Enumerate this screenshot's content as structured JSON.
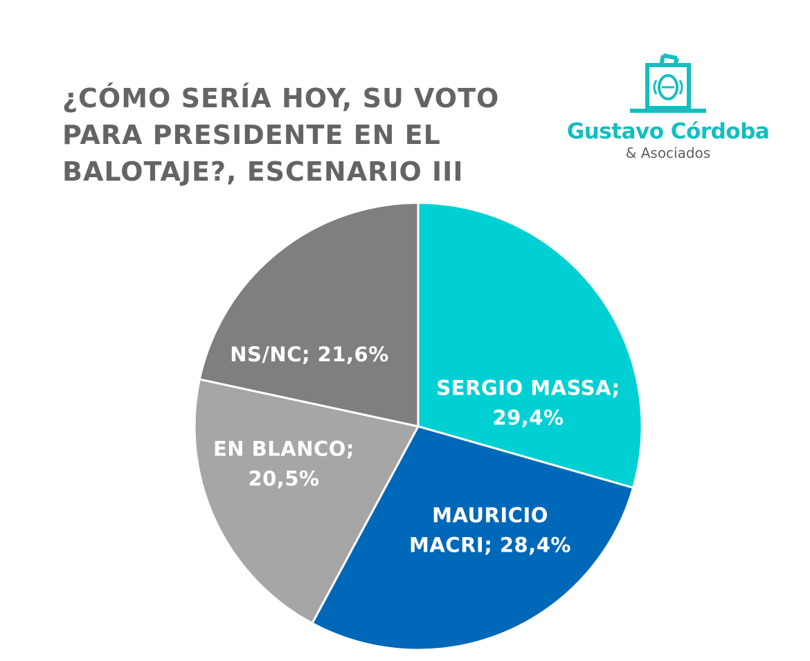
{
  "title_lines": [
    "¿CÓMO SERÍA HOY, SU VOTO",
    "PARA PRESIDENTE EN EL",
    "BALOTAJE?, ESCENARIO III"
  ],
  "logo": {
    "name": "Gustavo Córdoba",
    "sub": "& Asociados",
    "icon": "ballot-box-icon",
    "color": "#13bec0"
  },
  "chart_data": {
    "type": "pie",
    "title": "¿CÓMO SERÍA HOY, SU VOTO PARA PRESIDENTE EN EL BALOTAJE?, ESCENARIO III",
    "slices": [
      {
        "label": "SERGIO MASSA",
        "value": 29.4,
        "display": "29,4%",
        "color": "#00d0d3",
        "label_lines": [
          "SERGIO MASSA;",
          "29,4%"
        ]
      },
      {
        "label": "MAURICIO MACRI",
        "value": 28.4,
        "display": "28,4%",
        "color": "#0068b8",
        "label_lines": [
          "MAURICIO",
          "MACRI; 28,4%"
        ]
      },
      {
        "label": "EN BLANCO",
        "value": 20.5,
        "display": "20,5%",
        "color": "#a6a6a6",
        "label_lines": [
          "EN BLANCO;",
          "20,5%"
        ]
      },
      {
        "label": "NS/NC",
        "value": 21.6,
        "display": "21,6%",
        "color": "#7f7f7f",
        "label_lines": [
          "NS/NC; 21,6%"
        ]
      }
    ]
  }
}
